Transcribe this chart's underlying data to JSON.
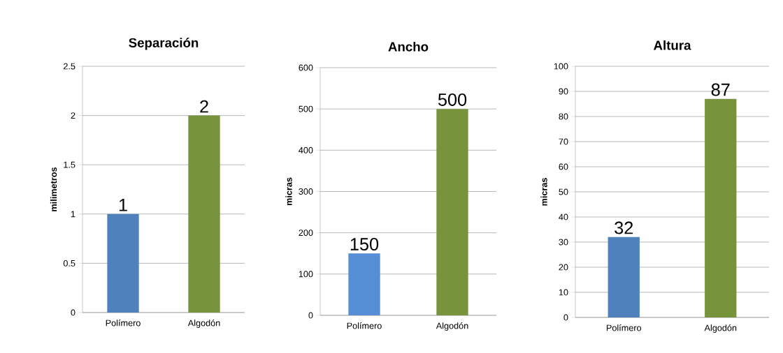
{
  "chart_data": [
    {
      "type": "bar",
      "title": "Separación",
      "ylabel": "milimetros",
      "categories": [
        "Polímero",
        "Algodón"
      ],
      "values": [
        1,
        2
      ],
      "colors": [
        "#4f81bd",
        "#77933c"
      ],
      "ylim": [
        0,
        2.5
      ],
      "yticks": [
        0,
        0.5,
        1,
        1.5,
        2,
        2.5
      ],
      "grid": "y",
      "data_labels": true
    },
    {
      "type": "bar",
      "title": "Ancho",
      "ylabel": "micras",
      "categories": [
        "Polímero",
        "Algodón"
      ],
      "values": [
        150,
        500
      ],
      "colors": [
        "#558ed5",
        "#77933c"
      ],
      "ylim": [
        0,
        600
      ],
      "yticks": [
        0,
        100,
        200,
        300,
        400,
        500,
        600
      ],
      "grid": "y",
      "data_labels": true
    },
    {
      "type": "bar",
      "title": "Altura",
      "ylabel": "micras",
      "categories": [
        "Polímero",
        "Algodón"
      ],
      "values": [
        32,
        87
      ],
      "colors": [
        "#4f81bd",
        "#77933c"
      ],
      "ylim": [
        0,
        100
      ],
      "yticks": [
        0,
        10,
        20,
        30,
        40,
        50,
        60,
        70,
        80,
        90,
        100
      ],
      "grid": "y",
      "data_labels": true
    }
  ]
}
